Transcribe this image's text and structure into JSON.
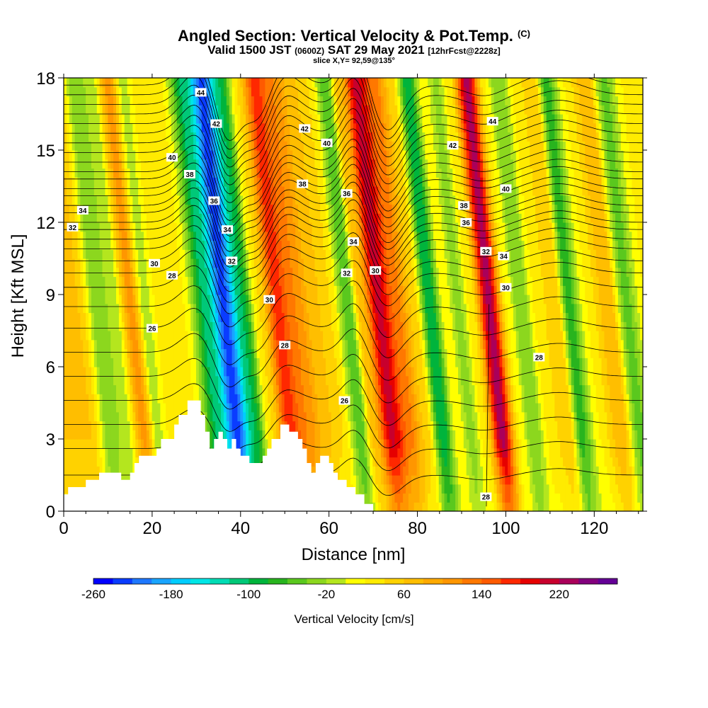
{
  "chart": {
    "title": "Angled Section: Vertical Velocity & Pot.Temp.",
    "title_unit": "(C)",
    "valid_main": "Valid 1500 JST",
    "valid_z": "(0600Z)",
    "valid_date": "SAT 29 May 2021",
    "valid_fcst": "[12hrFcst@2228z]",
    "slice": "slice X,Y= 92,59@135°"
  },
  "chart_data": {
    "type": "heatmap",
    "title": "Angled Section: Vertical Velocity & Pot.Temp.",
    "xlabel": "Distance [nm]",
    "ylabel": "Height [Kft MSL]",
    "xlim": [
      0,
      131
    ],
    "ylim": [
      0,
      18
    ],
    "x_ticks": [
      0,
      20,
      40,
      60,
      80,
      100,
      120
    ],
    "x_tick_labels": [
      "0",
      "20",
      "40",
      "60",
      "80",
      "100",
      "120"
    ],
    "y_ticks": [
      0,
      3,
      6,
      9,
      12,
      15,
      18
    ],
    "y_tick_labels": [
      "0",
      "3",
      "6",
      "9",
      "12",
      "15",
      "18"
    ],
    "colorbar": {
      "label": "Vertical Velocity [cm/s]",
      "tick_labels": [
        "-260",
        "-180",
        "-100",
        "-20",
        "60",
        "140",
        "220"
      ],
      "tick_values": [
        -260,
        -180,
        -100,
        -20,
        60,
        140,
        220
      ],
      "min": -260,
      "max": 280,
      "step": 20,
      "colors": [
        "#0000ff",
        "#0a3cff",
        "#1e78ff",
        "#19a5ff",
        "#00cdff",
        "#00e6e6",
        "#00dcb4",
        "#00c878",
        "#00b43c",
        "#28b41e",
        "#5ac81e",
        "#8cd71e",
        "#b4e61e",
        "#ffff00",
        "#ffeb00",
        "#ffd200",
        "#ffbe00",
        "#ffaa00",
        "#ff9600",
        "#ff7800",
        "#ff5a00",
        "#ff2800",
        "#e60000",
        "#c8002d",
        "#aa005a",
        "#82007d",
        "#640096"
      ]
    },
    "vertical_velocity_columns": [
      {
        "x": 3,
        "w": 60
      },
      {
        "x": 7,
        "w": -30
      },
      {
        "x": 11,
        "w": -15
      },
      {
        "x": 15,
        "w": 110
      },
      {
        "x": 18,
        "w": -10
      },
      {
        "x": 22,
        "w": 40
      },
      {
        "x": 27,
        "w": 20
      },
      {
        "x": 32,
        "w": -110
      },
      {
        "x": 36,
        "w": -230
      },
      {
        "x": 40,
        "w": -100
      },
      {
        "x": 44,
        "w": 40
      },
      {
        "x": 48,
        "w": 170
      },
      {
        "x": 52,
        "w": 120
      },
      {
        "x": 56,
        "w": 70
      },
      {
        "x": 60,
        "w": 40
      },
      {
        "x": 64,
        "w": -60
      },
      {
        "x": 67,
        "w": 70
      },
      {
        "x": 71,
        "w": 210
      },
      {
        "x": 75,
        "w": 130
      },
      {
        "x": 79,
        "w": 50
      },
      {
        "x": 82.5,
        "w": -100
      },
      {
        "x": 86,
        "w": 20
      },
      {
        "x": 89,
        "w": -30
      },
      {
        "x": 92,
        "w": 30
      },
      {
        "x": 96,
        "w": 230
      },
      {
        "x": 100,
        "w": 20
      },
      {
        "x": 103,
        "w": -40
      },
      {
        "x": 107,
        "w": 30
      },
      {
        "x": 111,
        "w": 60
      },
      {
        "x": 114,
        "w": -70
      },
      {
        "x": 118,
        "w": 20
      },
      {
        "x": 123,
        "w": 80
      },
      {
        "x": 127,
        "w": -50
      },
      {
        "x": 131,
        "w": 20
      }
    ],
    "theta_contour_labels": [
      {
        "x": 2,
        "y": 11.8,
        "text": "32"
      },
      {
        "x": 4.3,
        "y": 12.5,
        "text": "34"
      },
      {
        "x": 20.5,
        "y": 10.3,
        "text": "30"
      },
      {
        "x": 24.5,
        "y": 9.8,
        "text": "28"
      },
      {
        "x": 20,
        "y": 7.6,
        "text": "26"
      },
      {
        "x": 24.5,
        "y": 14.7,
        "text": "40"
      },
      {
        "x": 28.5,
        "y": 14,
        "text": "38"
      },
      {
        "x": 31,
        "y": 17.4,
        "text": "44"
      },
      {
        "x": 34.5,
        "y": 16.1,
        "text": "42"
      },
      {
        "x": 34,
        "y": 12.9,
        "text": "36"
      },
      {
        "x": 37,
        "y": 11.7,
        "text": "34"
      },
      {
        "x": 38,
        "y": 10.4,
        "text": "32"
      },
      {
        "x": 46.5,
        "y": 8.8,
        "text": "30"
      },
      {
        "x": 50,
        "y": 6.9,
        "text": "28"
      },
      {
        "x": 54.5,
        "y": 15.9,
        "text": "42"
      },
      {
        "x": 59.5,
        "y": 15.3,
        "text": "40"
      },
      {
        "x": 54,
        "y": 13.6,
        "text": "38"
      },
      {
        "x": 64,
        "y": 13.2,
        "text": "36"
      },
      {
        "x": 65.5,
        "y": 11.2,
        "text": "34"
      },
      {
        "x": 64,
        "y": 9.9,
        "text": "32"
      },
      {
        "x": 70.5,
        "y": 10,
        "text": "30"
      },
      {
        "x": 63.5,
        "y": 4.6,
        "text": "26"
      },
      {
        "x": 97,
        "y": 16.2,
        "text": "44"
      },
      {
        "x": 88,
        "y": 15.2,
        "text": "42"
      },
      {
        "x": 100,
        "y": 13.4,
        "text": "40"
      },
      {
        "x": 90.5,
        "y": 12.7,
        "text": "38"
      },
      {
        "x": 91,
        "y": 12.0,
        "text": "36"
      },
      {
        "x": 95.5,
        "y": 10.8,
        "text": "32"
      },
      {
        "x": 99.5,
        "y": 10.6,
        "text": "34"
      },
      {
        "x": 100,
        "y": 9.3,
        "text": "30"
      },
      {
        "x": 107.5,
        "y": 6.4,
        "text": "28"
      },
      {
        "x": 95.5,
        "y": 0.6,
        "text": "28"
      }
    ],
    "terrain": [
      [
        0,
        0.7
      ],
      [
        1,
        0.7
      ],
      [
        1,
        1.0
      ],
      [
        5,
        1.0
      ],
      [
        5,
        1.3
      ],
      [
        8,
        1.3
      ],
      [
        8,
        1.6
      ],
      [
        13,
        1.6
      ],
      [
        13,
        1.3
      ],
      [
        15,
        1.3
      ],
      [
        15,
        1.6
      ],
      [
        16,
        1.6
      ],
      [
        16,
        2.0
      ],
      [
        17,
        2.0
      ],
      [
        17,
        2.3
      ],
      [
        21,
        2.3
      ],
      [
        21,
        2.6
      ],
      [
        22,
        2.6
      ],
      [
        22,
        3.0
      ],
      [
        25,
        3.0
      ],
      [
        25,
        3.6
      ],
      [
        26,
        3.6
      ],
      [
        26,
        4.0
      ],
      [
        28,
        4.0
      ],
      [
        28,
        4.6
      ],
      [
        31,
        4.6
      ],
      [
        31,
        4.0
      ],
      [
        32,
        4.0
      ],
      [
        32,
        3.3
      ],
      [
        33,
        3.3
      ],
      [
        33,
        2.6
      ],
      [
        34,
        2.6
      ],
      [
        34,
        3.0
      ],
      [
        35,
        3.0
      ],
      [
        35,
        3.3
      ],
      [
        36,
        3.3
      ],
      [
        36,
        3.0
      ],
      [
        37,
        3.0
      ],
      [
        37,
        2.6
      ],
      [
        38,
        2.6
      ],
      [
        38,
        3.0
      ],
      [
        39,
        3.0
      ],
      [
        39,
        2.6
      ],
      [
        40,
        2.6
      ],
      [
        40,
        2.3
      ],
      [
        42,
        2.3
      ],
      [
        42,
        2.0
      ],
      [
        45,
        2.0
      ],
      [
        45,
        2.3
      ],
      [
        46,
        2.3
      ],
      [
        46,
        2.6
      ],
      [
        47,
        2.6
      ],
      [
        47,
        3.0
      ],
      [
        49,
        3.0
      ],
      [
        49,
        3.6
      ],
      [
        51,
        3.6
      ],
      [
        51,
        3.3
      ],
      [
        53,
        3.3
      ],
      [
        53,
        3.0
      ],
      [
        54,
        3.0
      ],
      [
        54,
        2.6
      ],
      [
        55,
        2.6
      ],
      [
        55,
        2.0
      ],
      [
        56,
        2.0
      ],
      [
        56,
        1.6
      ],
      [
        57,
        1.6
      ],
      [
        57,
        2.0
      ],
      [
        58,
        2.0
      ],
      [
        58,
        2.3
      ],
      [
        60,
        2.3
      ],
      [
        60,
        2.0
      ],
      [
        61,
        2.0
      ],
      [
        61,
        1.6
      ],
      [
        62,
        1.6
      ],
      [
        62,
        1.3
      ],
      [
        64,
        1.3
      ],
      [
        64,
        1.0
      ],
      [
        66,
        1.0
      ],
      [
        66,
        0.7
      ],
      [
        68,
        0.7
      ],
      [
        68,
        0.3
      ],
      [
        70,
        0.3
      ],
      [
        70,
        0
      ],
      [
        131,
        0
      ]
    ]
  }
}
